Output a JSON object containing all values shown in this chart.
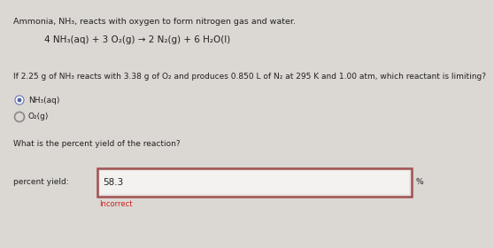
{
  "bg_color": "#dbd7d2",
  "inner_box_color": "#e8e5e2",
  "title_line": "Ammonia, NH₃, reacts with oxygen to form nitrogen gas and water.",
  "equation": "4 NH₃(aq) + 3 O₂(g) → 2 N₂(g) + 6 H₂O(l)",
  "question1": "If 2.25 g of NH₃ reacts with 3.38 g of O₂ and produces 0.850 L of N₂ at 295 K and 1.00 atm, which reactant is limiting?",
  "option1": "NH₃(aq)",
  "option2": "O₂(g)",
  "question2": "What is the percent yield of the reaction?",
  "label": "percent yield:",
  "answer": "58.3",
  "feedback": "Incorrect",
  "feedback_color": "#cc2222",
  "box_border_color": "#a05050",
  "text_color": "#222222",
  "percent_sign": "%",
  "font_size_title": 6.8,
  "font_size_eq": 7.5,
  "font_size_q": 6.5,
  "font_size_ans": 7.5,
  "font_size_feedback": 6.0,
  "radio_selected_color": "#5566aa",
  "radio_unselected_color": "#888888"
}
